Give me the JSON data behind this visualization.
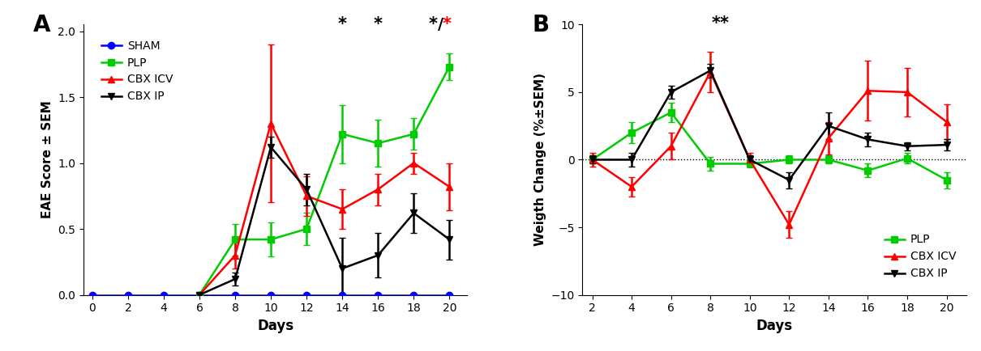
{
  "panel_A": {
    "title": "A",
    "xlabel": "Days",
    "ylabel": "EAE Score ± SEM",
    "xlim": [
      -0.5,
      21
    ],
    "ylim": [
      0,
      2.05
    ],
    "xticks": [
      0,
      2,
      4,
      6,
      8,
      10,
      12,
      14,
      16,
      18,
      20
    ],
    "yticks": [
      0.0,
      0.5,
      1.0,
      1.5,
      2.0
    ],
    "days_sham": [
      0,
      2,
      4,
      6,
      8,
      10,
      12,
      14,
      16,
      18,
      20
    ],
    "sham_y": [
      0,
      0,
      0,
      0,
      0,
      0,
      0,
      0,
      0,
      0,
      0
    ],
    "sham_err": [
      0,
      0,
      0,
      0,
      0,
      0,
      0,
      0,
      0,
      0,
      0
    ],
    "days_plp": [
      6,
      8,
      10,
      12,
      14,
      16,
      18,
      20
    ],
    "plp_y": [
      0.0,
      0.42,
      0.42,
      0.5,
      1.22,
      1.15,
      1.22,
      1.73
    ],
    "plp_err": [
      0.0,
      0.12,
      0.13,
      0.12,
      0.22,
      0.18,
      0.12,
      0.1
    ],
    "days_cbxicv": [
      6,
      8,
      10,
      12,
      14,
      16,
      18,
      20
    ],
    "cbxicv_y": [
      0.0,
      0.3,
      1.3,
      0.75,
      0.65,
      0.8,
      1.0,
      0.82
    ],
    "cbxicv_err": [
      0.0,
      0.1,
      0.6,
      0.15,
      0.15,
      0.12,
      0.08,
      0.18
    ],
    "days_cbxip": [
      6,
      8,
      10,
      12,
      14,
      16,
      18,
      20
    ],
    "cbxip_y": [
      0.0,
      0.12,
      1.12,
      0.8,
      0.2,
      0.3,
      0.62,
      0.42
    ],
    "cbxip_err": [
      0.0,
      0.05,
      0.08,
      0.12,
      0.23,
      0.17,
      0.15,
      0.15
    ],
    "star1_x": 14,
    "star2_x": 16,
    "star3_x": 19.1,
    "star_red_x": 19.85,
    "slash_x": 19.5,
    "star_y": 1.99
  },
  "panel_B": {
    "title": "B",
    "xlabel": "Days",
    "ylabel": "Weigth Change (%±SEM)",
    "xlim": [
      1.5,
      21
    ],
    "ylim": [
      -10,
      10
    ],
    "xticks": [
      2,
      4,
      6,
      8,
      10,
      12,
      14,
      16,
      18,
      20
    ],
    "yticks": [
      -10,
      -5,
      0,
      5,
      10
    ],
    "days_plp": [
      2,
      4,
      6,
      8,
      10,
      12,
      14,
      16,
      18,
      20
    ],
    "plp_y": [
      0.0,
      2.0,
      3.5,
      -0.3,
      -0.3,
      0.0,
      0.0,
      -0.8,
      0.1,
      -1.5
    ],
    "plp_err": [
      0.3,
      0.8,
      0.7,
      0.5,
      0.3,
      0.3,
      0.3,
      0.5,
      0.4,
      0.6
    ],
    "days_cbxicv": [
      2,
      4,
      6,
      8,
      10,
      12,
      14,
      16,
      18,
      20
    ],
    "cbxicv_y": [
      0.0,
      -2.0,
      1.0,
      6.5,
      0.0,
      -4.8,
      1.6,
      5.1,
      5.0,
      2.8
    ],
    "cbxicv_err": [
      0.5,
      0.7,
      1.0,
      1.5,
      0.5,
      1.0,
      1.2,
      2.2,
      1.8,
      1.3
    ],
    "days_cbxip": [
      2,
      4,
      6,
      8,
      10,
      12,
      14,
      16,
      18,
      20
    ],
    "cbxip_y": [
      0.0,
      0.0,
      5.0,
      6.6,
      0.0,
      -1.5,
      2.5,
      1.5,
      1.0,
      1.1
    ],
    "cbxip_err": [
      0.3,
      0.5,
      0.5,
      0.5,
      0.3,
      0.6,
      1.0,
      0.5,
      0.3,
      0.4
    ],
    "star_x": 8.5,
    "star_y": 9.5
  },
  "colors": {
    "blue": "#0000FF",
    "green": "#00CC00",
    "red": "#FF0000",
    "black": "#000000"
  }
}
